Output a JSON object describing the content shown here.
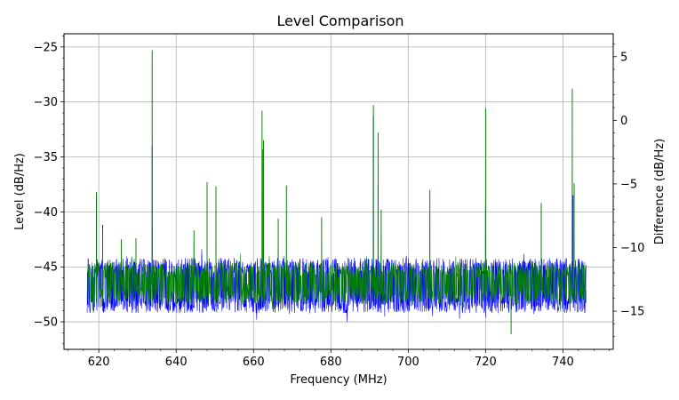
{
  "chart_data": {
    "type": "line",
    "title": "Level Comparison",
    "xlabel": "Frequency (MHz)",
    "ylabel": "Level (dB/Hz)",
    "y2label": "Difference (dB/Hz)",
    "xlim": [
      611,
      753
    ],
    "ylim": [
      -52.5,
      -23.8
    ],
    "y2lim": [
      -18.0,
      6.8
    ],
    "x_ticks": [
      620,
      640,
      660,
      680,
      700,
      720,
      740
    ],
    "x_tick_labels": [
      "620",
      "640",
      "660",
      "680",
      "700",
      "720",
      "740"
    ],
    "y_ticks": [
      -25,
      -30,
      -35,
      -40,
      -45,
      -50
    ],
    "y_tick_labels": [
      "−25",
      "−30",
      "−35",
      "−40",
      "−45",
      "−50"
    ],
    "y2_ticks": [
      5,
      0,
      -5,
      -10,
      -15
    ],
    "y2_tick_labels": [
      "5",
      "0",
      "−5",
      "−10",
      "−15"
    ],
    "grid": true,
    "series": [
      {
        "color": "#0000ff",
        "x_range": [
          617.0,
          746.0
        ],
        "baseline": -46.6,
        "band": [
          -49.2,
          -44.2
        ],
        "peaks": [
          {
            "x": 619.4,
            "y": -38.8
          },
          {
            "x": 621.0,
            "y": -41.2
          },
          {
            "x": 633.8,
            "y": -34.0
          },
          {
            "x": 662.3,
            "y": -34.3
          },
          {
            "x": 691.0,
            "y": -31.3
          },
          {
            "x": 692.2,
            "y": -37.5
          },
          {
            "x": 720.0,
            "y": -39.5
          },
          {
            "x": 734.4,
            "y": -39.5
          },
          {
            "x": 742.6,
            "y": -38.5
          }
        ]
      },
      {
        "color": "#008000",
        "x_range": [
          617.0,
          746.0
        ],
        "baseline": -46.5,
        "band": [
          -48.4,
          -44.6
        ],
        "peaks": [
          {
            "x": 619.4,
            "y": -38.2
          },
          {
            "x": 621.0,
            "y": -41.5
          },
          {
            "x": 625.8,
            "y": -42.5
          },
          {
            "x": 629.6,
            "y": -42.4
          },
          {
            "x": 633.8,
            "y": -25.3
          },
          {
            "x": 644.6,
            "y": -41.7
          },
          {
            "x": 648.0,
            "y": -37.3
          },
          {
            "x": 650.3,
            "y": -37.7
          },
          {
            "x": 662.2,
            "y": -30.8
          },
          {
            "x": 662.6,
            "y": -33.5
          },
          {
            "x": 666.4,
            "y": -40.6
          },
          {
            "x": 668.5,
            "y": -37.6
          },
          {
            "x": 677.6,
            "y": -40.5
          },
          {
            "x": 691.0,
            "y": -30.3
          },
          {
            "x": 692.2,
            "y": -32.8
          },
          {
            "x": 693.0,
            "y": -39.8
          },
          {
            "x": 705.6,
            "y": -38.0
          },
          {
            "x": 720.0,
            "y": -30.6
          },
          {
            "x": 734.4,
            "y": -39.2
          },
          {
            "x": 742.4,
            "y": -28.8
          },
          {
            "x": 742.9,
            "y": -37.4
          }
        ],
        "dips": [
          {
            "x": 726.6,
            "y": -51.1
          }
        ]
      }
    ]
  }
}
